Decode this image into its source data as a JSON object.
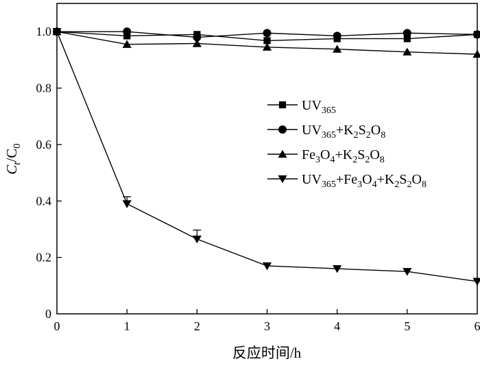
{
  "chart_data": {
    "type": "line",
    "x": [
      0,
      1,
      2,
      3,
      4,
      5,
      6
    ],
    "xlabel": "反应时间/h",
    "ylabel": {
      "main": "C",
      "sub1": "t",
      "sep": "/C",
      "sub2": "0"
    },
    "xlim": [
      0,
      6
    ],
    "ylim": [
      0,
      1.1
    ],
    "xticks": [
      0,
      1,
      2,
      3,
      4,
      5,
      6
    ],
    "yticks": [
      0,
      0.2,
      0.4,
      0.6,
      0.8,
      1.0
    ],
    "ytick_labels": [
      "0",
      "0.2",
      "0.4",
      "0.6",
      "0.8",
      "1.0"
    ],
    "grid": false,
    "legend_position": "center-right",
    "series": [
      {
        "name": "UV365",
        "legend_parts": [
          [
            "UV",
            ""
          ],
          [
            "365",
            "sub"
          ]
        ],
        "marker": "square",
        "values": [
          1.0,
          0.985,
          0.99,
          0.968,
          0.975,
          0.975,
          0.99
        ]
      },
      {
        "name": "UV365+K2S2O8",
        "legend_parts": [
          [
            "UV",
            ""
          ],
          [
            "365",
            "sub"
          ],
          [
            "+K",
            ""
          ],
          [
            "2",
            "sub"
          ],
          [
            "S",
            ""
          ],
          [
            "2",
            "sub"
          ],
          [
            "O",
            ""
          ],
          [
            "8",
            "sub"
          ]
        ],
        "marker": "circle",
        "values": [
          1.0,
          1.0,
          0.98,
          0.995,
          0.985,
          0.995,
          0.99
        ]
      },
      {
        "name": "Fe3O4+K2S2O8",
        "legend_parts": [
          [
            "Fe",
            ""
          ],
          [
            "3",
            "sub"
          ],
          [
            "O",
            ""
          ],
          [
            "4",
            "sub"
          ],
          [
            "+K",
            ""
          ],
          [
            "2",
            "sub"
          ],
          [
            "S",
            ""
          ],
          [
            "2",
            "sub"
          ],
          [
            "O",
            ""
          ],
          [
            "8",
            "sub"
          ]
        ],
        "marker": "triangle-up",
        "values": [
          1.0,
          0.955,
          0.958,
          0.945,
          0.938,
          0.928,
          0.92
        ]
      },
      {
        "name": "UV365+Fe3O4+K2S2O8",
        "legend_parts": [
          [
            "UV",
            ""
          ],
          [
            "365",
            "sub"
          ],
          [
            "+Fe",
            ""
          ],
          [
            "3",
            "sub"
          ],
          [
            "O",
            ""
          ],
          [
            "4",
            "sub"
          ],
          [
            "+K",
            ""
          ],
          [
            "2",
            "sub"
          ],
          [
            "S",
            ""
          ],
          [
            "2",
            "sub"
          ],
          [
            "O",
            ""
          ],
          [
            "8",
            "sub"
          ]
        ],
        "marker": "triangle-down",
        "values": [
          1.0,
          0.39,
          0.265,
          0.17,
          0.16,
          0.15,
          0.115
        ],
        "error": [
          0,
          0.025,
          0.032,
          0,
          0,
          0,
          0
        ]
      }
    ]
  }
}
